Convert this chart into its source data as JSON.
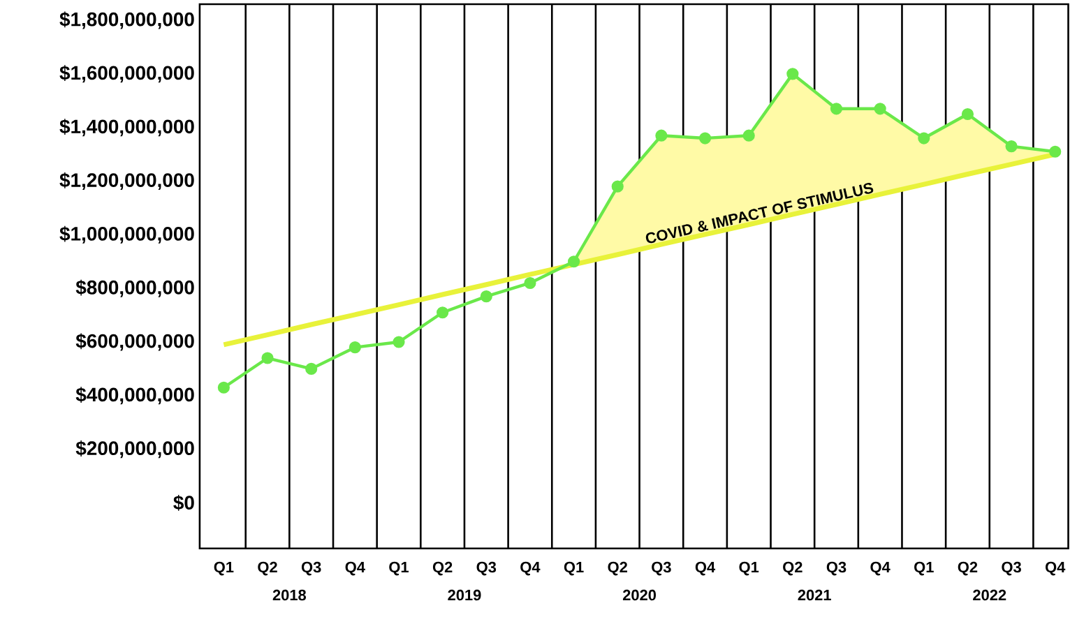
{
  "chart_data": {
    "type": "line",
    "categories": [
      "Q1",
      "Q2",
      "Q3",
      "Q4",
      "Q1",
      "Q2",
      "Q3",
      "Q4",
      "Q1",
      "Q2",
      "Q3",
      "Q4",
      "Q1",
      "Q2",
      "Q3",
      "Q4",
      "Q1",
      "Q2",
      "Q3",
      "Q4"
    ],
    "series": [
      {
        "color": "#e8f23a",
        "marker": "none",
        "values": [
          590000000,
          627000000,
          665000000,
          702000000,
          739000000,
          777000000,
          814000000,
          852000000,
          889000000,
          926000000,
          964000000,
          1001000000,
          1038000000,
          1076000000,
          1113000000,
          1151000000,
          1188000000,
          1226000000,
          1263000000,
          1300000000
        ]
      },
      {
        "color": "#6ae84a",
        "marker": "circle",
        "values": [
          430000000,
          540000000,
          500000000,
          580000000,
          600000000,
          710000000,
          770000000,
          820000000,
          900000000,
          1180000000,
          1370000000,
          1360000000,
          1370000000,
          1600000000,
          1470000000,
          1470000000,
          1360000000,
          1450000000,
          1330000000,
          1310000000
        ],
        "lower": [
          null,
          null,
          null,
          null,
          null,
          null,
          null,
          null,
          889000000,
          926000000,
          964000000,
          1001000000,
          1038000000,
          1076000000,
          1113000000,
          1151000000,
          1188000000,
          1226000000,
          1263000000,
          1300000000
        ],
        "upper": [
          null,
          null,
          null,
          null,
          null,
          null,
          null,
          null,
          900000000,
          1180000000,
          1370000000,
          1360000000,
          1370000000,
          1600000000,
          1470000000,
          1470000000,
          1360000000,
          1450000000,
          1330000000,
          1310000000
        ]
      }
    ],
    "ylim": [
      -170000000,
      1860000000
    ],
    "yticks": [
      {
        "value": 0,
        "label": "$0"
      },
      {
        "value": 200000000,
        "label": "$200,000,000"
      },
      {
        "value": 400000000,
        "label": "$400,000,000"
      },
      {
        "value": 600000000,
        "label": "$600,000,000"
      },
      {
        "value": 800000000,
        "label": "$800,000,000"
      },
      {
        "value": 1000000000,
        "label": "$1,000,000,000"
      },
      {
        "value": 1200000000,
        "label": "$1,200,000,000"
      },
      {
        "value": 1400000000,
        "label": "$1,400,000,000"
      },
      {
        "value": 1600000000,
        "label": "$1,600,000,000"
      },
      {
        "value": 1800000000,
        "label": "$1,800,000,000"
      }
    ],
    "grid": "x",
    "annotations": [
      "COVID & IMPACT OF STIMULUS",
      "2018",
      "2019",
      "2020",
      "2021",
      "2022"
    ]
  }
}
